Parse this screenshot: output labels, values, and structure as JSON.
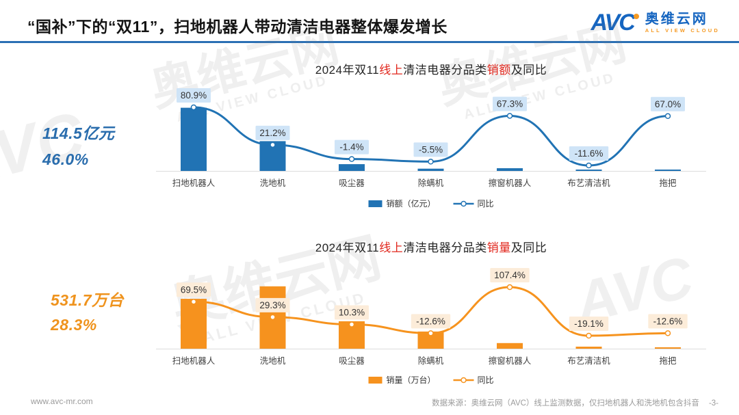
{
  "header": {
    "title": "“国补”下的“双11”，扫地机器人带动清洁电器整体爆发增长",
    "logo": {
      "brand": "AVC",
      "name": "奥维云网",
      "tagline": "ALL VIEW CLOUD"
    }
  },
  "watermark": {
    "cn": "奥维云网",
    "en": "ALL VIEW CLOUD",
    "brand": "AVC"
  },
  "chart_data": [
    {
      "type": "bar+line",
      "title": {
        "p1": "2024年双11",
        "r1": "线上",
        "p2": "清洁电器分品类",
        "r2": "销额",
        "p3": "及同比"
      },
      "highlight": {
        "value": "114.5亿元",
        "growth": "46.0%"
      },
      "categories": [
        "扫地机器人",
        "洗地机",
        "吸尘器",
        "除螨机",
        "擦窗机器人",
        "布艺清洁机",
        "拖把"
      ],
      "series": [
        {
          "name": "销额（亿元）",
          "type": "bar",
          "values_estimated": [
            70,
            33,
            7.5,
            2.5,
            3,
            0.8,
            0.8
          ]
        },
        {
          "name": "同比",
          "type": "line",
          "unit": "%",
          "values": [
            80.9,
            21.2,
            -1.4,
            -5.5,
            67.3,
            -11.6,
            67.0
          ]
        }
      ],
      "legend": {
        "bar": "销额（亿元）",
        "line": "同比"
      },
      "colors": {
        "bar": "#2173b4",
        "line": "#2173b4",
        "label_bg": "#cfe4f7",
        "label_text": "#333333"
      }
    },
    {
      "type": "bar+line",
      "title": {
        "p1": "2024年双11",
        "r1": "线上",
        "p2": "清洁电器分品类",
        "r2": "销量",
        "p3": "及同比"
      },
      "highlight": {
        "value": "531.7万台",
        "growth": "28.3%"
      },
      "categories": [
        "扫地机器人",
        "洗地机",
        "吸尘器",
        "除螨机",
        "擦窗机器人",
        "布艺清洁机",
        "拖把"
      ],
      "series": [
        {
          "name": "销量（万台）",
          "type": "bar",
          "values_estimated": [
            160,
            200,
            88,
            55,
            18,
            6.5,
            4.5
          ]
        },
        {
          "name": "同比",
          "type": "line",
          "unit": "%",
          "values": [
            69.5,
            29.3,
            10.3,
            -12.6,
            107.4,
            -19.1,
            -12.6
          ]
        }
      ],
      "legend": {
        "bar": "销量（万台）",
        "line": "同比"
      },
      "colors": {
        "bar": "#f6921e",
        "line": "#f6931e",
        "label_bg": "#fcecd9",
        "label_text": "#333333"
      }
    }
  ],
  "footer": {
    "site": "www.avc-mr.com",
    "source": "数据来源：奥维云网（AVC）线上监测数据，仅扫地机器人和洗地机包含抖音",
    "page": "-3-"
  }
}
